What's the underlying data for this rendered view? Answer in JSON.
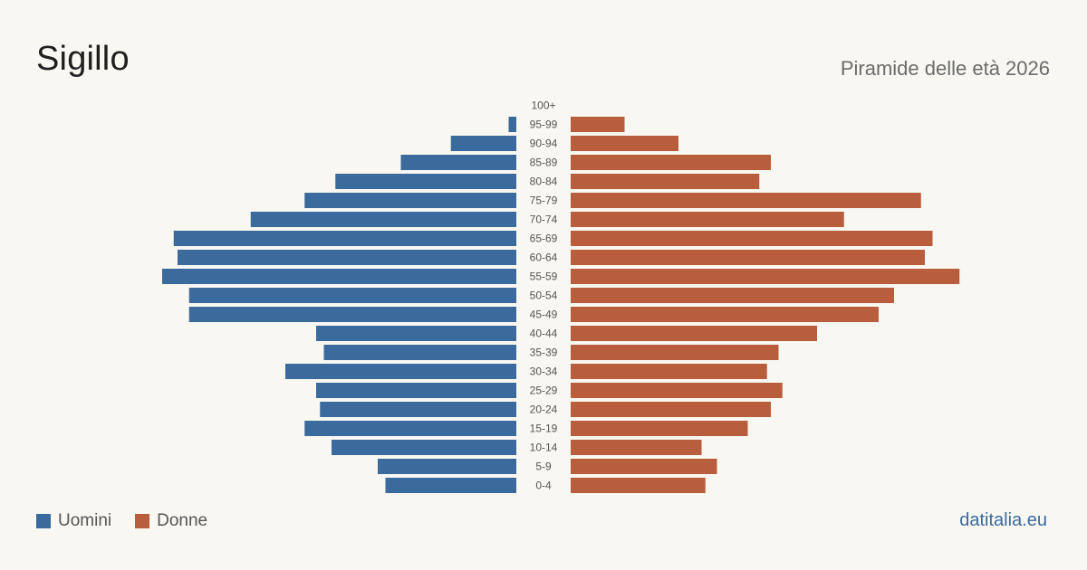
{
  "header": {
    "title": "Sigillo",
    "subtitle": "Piramide delle età 2026"
  },
  "footer": {
    "site": "datitalia.eu"
  },
  "colors": {
    "male": "#3b6a9c",
    "female": "#b95e3d",
    "tick": "#555555"
  },
  "chart_data": {
    "type": "bar",
    "orientation": "horizontal-diverging",
    "categories": [
      "100+",
      "95-99",
      "90-94",
      "85-89",
      "80-84",
      "75-79",
      "70-74",
      "65-69",
      "60-64",
      "55-59",
      "50-54",
      "45-49",
      "40-44",
      "35-39",
      "30-34",
      "25-29",
      "20-24",
      "15-19",
      "10-14",
      "5-9",
      "0-4"
    ],
    "series": [
      {
        "name": "Uomini",
        "values": [
          0,
          2,
          17,
          30,
          47,
          55,
          69,
          89,
          88,
          92,
          85,
          85,
          52,
          50,
          60,
          52,
          51,
          55,
          48,
          36,
          34
        ]
      },
      {
        "name": "Donne",
        "values": [
          0,
          14,
          28,
          52,
          49,
          91,
          71,
          94,
          92,
          101,
          84,
          80,
          64,
          54,
          51,
          55,
          52,
          46,
          34,
          38,
          35
        ]
      }
    ],
    "xlabel": "",
    "ylabel": "",
    "grid": false,
    "legend_position": "bottom-left"
  }
}
